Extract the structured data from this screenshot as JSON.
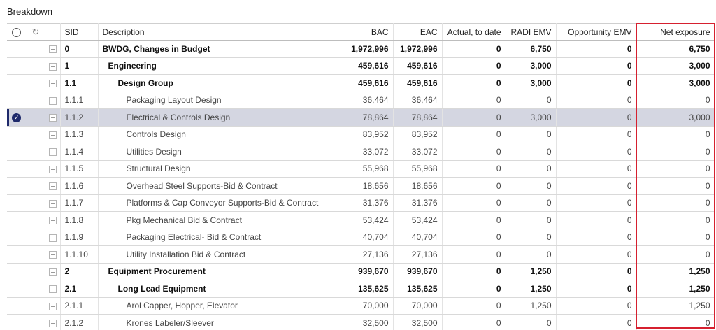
{
  "panel": {
    "title": "Breakdown"
  },
  "icons": {
    "select_all": "circle-outline-icon",
    "refresh": "refresh-icon",
    "selected": "check-circle-icon",
    "collapse": "collapse-box-icon"
  },
  "colors": {
    "highlight_border": "#d6202f",
    "selected_row": "#d4d6e1",
    "selected_marker": "#1f2a6b"
  },
  "table": {
    "headers": {
      "refresh": "↻",
      "sid": "SID",
      "description": "Description",
      "bac": "BAC",
      "eac": "EAC",
      "actual": "Actual, to date",
      "radi": "RADI EMV",
      "opportunity": "Opportunity EMV",
      "net": "Net exposure"
    },
    "rows": [
      {
        "sid": "0",
        "description": "BWDG, Changes in Budget",
        "bac": "1,972,996",
        "eac": "1,972,996",
        "actual": "0",
        "radi": "6,750",
        "opportunity": "0",
        "net": "6,750"
      },
      {
        "sid": "1",
        "description": "Engineering",
        "bac": "459,616",
        "eac": "459,616",
        "actual": "0",
        "radi": "3,000",
        "opportunity": "0",
        "net": "3,000"
      },
      {
        "sid": "1.1",
        "description": "Design Group",
        "bac": "459,616",
        "eac": "459,616",
        "actual": "0",
        "radi": "3,000",
        "opportunity": "0",
        "net": "3,000"
      },
      {
        "sid": "1.1.1",
        "description": "Packaging Layout Design",
        "bac": "36,464",
        "eac": "36,464",
        "actual": "0",
        "radi": "0",
        "opportunity": "0",
        "net": "0"
      },
      {
        "sid": "1.1.2",
        "description": "Electrical & Controls Design",
        "bac": "78,864",
        "eac": "78,864",
        "actual": "0",
        "radi": "3,000",
        "opportunity": "0",
        "net": "3,000",
        "selected_mark": "✓"
      },
      {
        "sid": "1.1.3",
        "description": "Controls Design",
        "bac": "83,952",
        "eac": "83,952",
        "actual": "0",
        "radi": "0",
        "opportunity": "0",
        "net": "0"
      },
      {
        "sid": "1.1.4",
        "description": "Utilities Design",
        "bac": "33,072",
        "eac": "33,072",
        "actual": "0",
        "radi": "0",
        "opportunity": "0",
        "net": "0"
      },
      {
        "sid": "1.1.5",
        "description": "Structural Design",
        "bac": "55,968",
        "eac": "55,968",
        "actual": "0",
        "radi": "0",
        "opportunity": "0",
        "net": "0"
      },
      {
        "sid": "1.1.6",
        "description": "Overhead Steel Supports-Bid & Contract",
        "bac": "18,656",
        "eac": "18,656",
        "actual": "0",
        "radi": "0",
        "opportunity": "0",
        "net": "0"
      },
      {
        "sid": "1.1.7",
        "description": "Platforms & Cap Conveyor Supports-Bid & Contract",
        "bac": "31,376",
        "eac": "31,376",
        "actual": "0",
        "radi": "0",
        "opportunity": "0",
        "net": "0"
      },
      {
        "sid": "1.1.8",
        "description": "Pkg Mechanical Bid & Contract",
        "bac": "53,424",
        "eac": "53,424",
        "actual": "0",
        "radi": "0",
        "opportunity": "0",
        "net": "0"
      },
      {
        "sid": "1.1.9",
        "description": "Packaging Electrical- Bid & Contract",
        "bac": "40,704",
        "eac": "40,704",
        "actual": "0",
        "radi": "0",
        "opportunity": "0",
        "net": "0"
      },
      {
        "sid": "1.1.10",
        "description": "Utility Installation Bid & Contract",
        "bac": "27,136",
        "eac": "27,136",
        "actual": "0",
        "radi": "0",
        "opportunity": "0",
        "net": "0"
      },
      {
        "sid": "2",
        "description": "Equipment Procurement",
        "bac": "939,670",
        "eac": "939,670",
        "actual": "0",
        "radi": "1,250",
        "opportunity": "0",
        "net": "1,250"
      },
      {
        "sid": "2.1",
        "description": "Long Lead Equipment",
        "bac": "135,625",
        "eac": "135,625",
        "actual": "0",
        "radi": "1,250",
        "opportunity": "0",
        "net": "1,250"
      },
      {
        "sid": "2.1.1",
        "description": "Arol Capper, Hopper, Elevator",
        "bac": "70,000",
        "eac": "70,000",
        "actual": "0",
        "radi": "1,250",
        "opportunity": "0",
        "net": "1,250"
      },
      {
        "sid": "2.1.2",
        "description": "Krones Labeler/Sleever",
        "bac": "32,500",
        "eac": "32,500",
        "actual": "0",
        "radi": "0",
        "opportunity": "0",
        "net": "0"
      }
    ]
  }
}
